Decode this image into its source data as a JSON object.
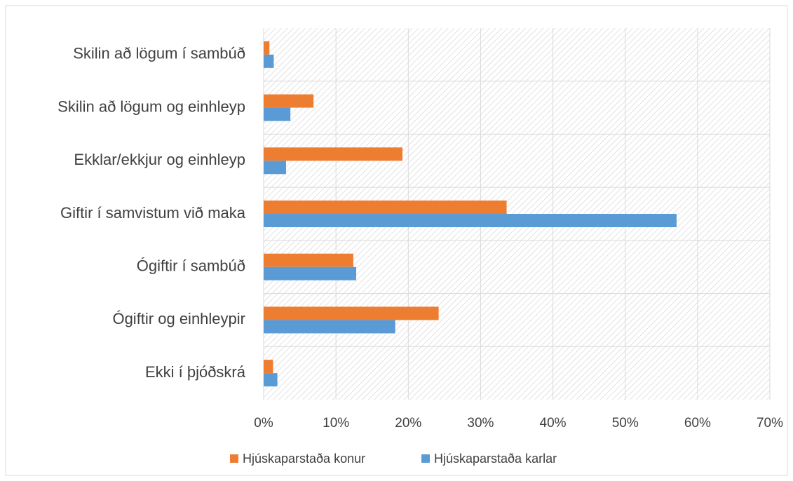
{
  "chart_data": {
    "type": "hbar",
    "categories": [
      "Skilin að lögum í sambúð",
      "Skilin að lögum og einhleyp",
      "Ekklar/ekkjur og einhleyp",
      "Giftir í samvistum við maka",
      "Ógiftir í sambúð",
      "Ógiftir og einhleypir",
      "Ekki í þjóðskrá"
    ],
    "series": [
      {
        "name": "Hjúskaparstaða konur",
        "color": "#ed7d31",
        "values": [
          0.8,
          6.9,
          19.2,
          33.6,
          12.4,
          24.2,
          1.3
        ]
      },
      {
        "name": "Hjúskaparstaða karlar",
        "color": "#5b9bd5",
        "values": [
          1.4,
          3.7,
          3.1,
          57.1,
          12.8,
          18.2,
          1.9
        ]
      }
    ],
    "xlim": [
      0,
      70
    ],
    "xticks": [
      {
        "value": 0,
        "label": "0%"
      },
      {
        "value": 10,
        "label": "10%"
      },
      {
        "value": 20,
        "label": "20%"
      },
      {
        "value": 30,
        "label": "30%"
      },
      {
        "value": 40,
        "label": "40%"
      },
      {
        "value": 50,
        "label": "50%"
      },
      {
        "value": 60,
        "label": "60%"
      },
      {
        "value": 70,
        "label": "70%"
      }
    ],
    "grid": true,
    "legend": "bottom"
  }
}
